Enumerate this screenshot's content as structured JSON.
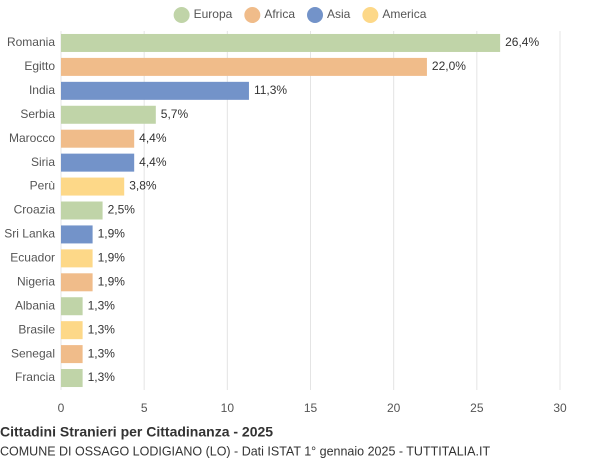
{
  "chart_data": {
    "type": "bar",
    "orientation": "horizontal",
    "title": "Cittadini Stranieri per Cittadinanza - 2025",
    "subtitle": "COMUNE DI OSSAGO LODIGIANO (LO) - Dati ISTAT 1° gennaio 2025 - TUTTITALIA.IT",
    "categories": [
      "Romania",
      "Egitto",
      "India",
      "Serbia",
      "Marocco",
      "Siria",
      "Perù",
      "Croazia",
      "Sri Lanka",
      "Ecuador",
      "Nigeria",
      "Albania",
      "Brasile",
      "Senegal",
      "Francia"
    ],
    "series": [
      {
        "name": "Europa",
        "color": "#c0d4a8",
        "values": [
          26.4,
          null,
          null,
          5.7,
          null,
          null,
          null,
          2.5,
          null,
          null,
          null,
          1.3,
          null,
          null,
          1.3
        ],
        "value_labels": [
          "26,4%",
          null,
          null,
          "5,7%",
          null,
          null,
          null,
          "2,5%",
          null,
          null,
          null,
          "1,3%",
          null,
          null,
          "1,3%"
        ]
      },
      {
        "name": "Africa",
        "color": "#f0bc8a",
        "values": [
          null,
          22.0,
          null,
          null,
          4.4,
          null,
          null,
          null,
          null,
          null,
          1.9,
          null,
          null,
          1.3,
          null
        ],
        "value_labels": [
          null,
          "22,0%",
          null,
          null,
          "4,4%",
          null,
          null,
          null,
          null,
          null,
          "1,9%",
          null,
          null,
          "1,3%",
          null
        ]
      },
      {
        "name": "Asia",
        "color": "#7393c9",
        "values": [
          null,
          null,
          11.3,
          null,
          null,
          4.4,
          null,
          null,
          1.9,
          null,
          null,
          null,
          null,
          null,
          null
        ],
        "value_labels": [
          null,
          null,
          "11,3%",
          null,
          null,
          "4,4%",
          null,
          null,
          "1,9%",
          null,
          null,
          null,
          null,
          null,
          null
        ]
      },
      {
        "name": "America",
        "color": "#fdd888",
        "values": [
          null,
          null,
          null,
          null,
          null,
          null,
          3.8,
          null,
          null,
          1.9,
          null,
          null,
          1.3,
          null,
          null
        ],
        "value_labels": [
          null,
          null,
          null,
          null,
          null,
          null,
          "3,8%",
          null,
          null,
          "1,9%",
          null,
          null,
          "1,3%",
          null,
          null
        ]
      }
    ],
    "xlim": [
      0,
      30
    ],
    "xticks": [
      0,
      5,
      10,
      15,
      20,
      25,
      30
    ],
    "grid": true
  }
}
